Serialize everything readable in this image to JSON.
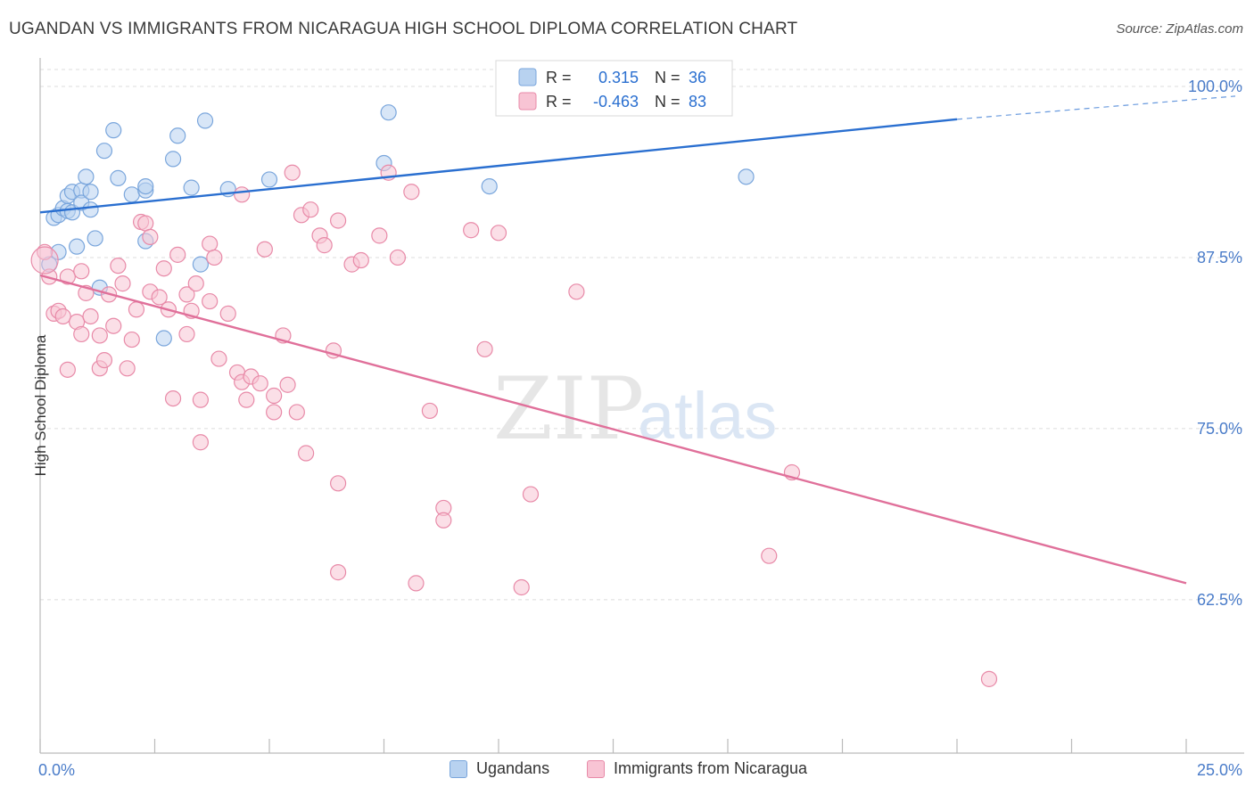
{
  "title": "UGANDAN VS IMMIGRANTS FROM NICARAGUA HIGH SCHOOL DIPLOMA CORRELATION CHART",
  "source": "Source: ZipAtlas.com",
  "watermark": {
    "zip": "ZIP",
    "atlas": "atlas"
  },
  "colors": {
    "blue_fill": "#b8d2f0",
    "blue_stroke": "#7aa6dc",
    "blue_line": "#2a6fd0",
    "pink_fill": "#f8c4d4",
    "pink_stroke": "#e88aa8",
    "pink_line": "#e0709a",
    "tick_label": "#4a7cc9",
    "grid": "#dcdcdc"
  },
  "stats_legend": [
    {
      "r_label": "R =",
      "r_value": "0.315",
      "n_label": "N =",
      "n_value": "36",
      "series": "Ugandans"
    },
    {
      "r_label": "R =",
      "r_value": "-0.463",
      "n_label": "N =",
      "n_value": "83",
      "series": "Immigrants from Nicaragua"
    }
  ],
  "chart_data": {
    "type": "scatter",
    "title": "UGANDAN VS IMMIGRANTS FROM NICARAGUA HIGH SCHOOL DIPLOMA CORRELATION CHART",
    "xlabel": "",
    "ylabel": "High School Diploma",
    "xlim": [
      0,
      25
    ],
    "ylim": [
      51.5,
      102
    ],
    "x_tick_labels": [
      "0.0%",
      "25.0%"
    ],
    "y_ticks": [
      62.5,
      75.0,
      87.5,
      100.0
    ],
    "y_tick_labels": [
      "62.5%",
      "75.0%",
      "87.5%",
      "100.0%"
    ],
    "grid": true,
    "legend": "bottom",
    "series": [
      {
        "name": "Ugandans",
        "color": "#b8d2f0",
        "trend": {
          "x": [
            0,
            20
          ],
          "y": [
            90.8,
            97.6
          ],
          "dashed_to": [
            25,
            98.9
          ]
        },
        "points": [
          [
            0.2,
            87.0
          ],
          [
            0.3,
            90.4
          ],
          [
            0.4,
            87.9
          ],
          [
            0.4,
            90.6
          ],
          [
            0.5,
            91.1
          ],
          [
            0.6,
            90.9
          ],
          [
            0.6,
            92.0
          ],
          [
            0.7,
            92.3
          ],
          [
            0.7,
            90.8
          ],
          [
            0.8,
            88.3
          ],
          [
            0.9,
            92.4
          ],
          [
            0.9,
            91.5
          ],
          [
            1.0,
            93.4
          ],
          [
            1.1,
            91.0
          ],
          [
            1.1,
            92.3
          ],
          [
            1.2,
            88.9
          ],
          [
            1.3,
            85.3
          ],
          [
            1.4,
            95.3
          ],
          [
            1.6,
            96.8
          ],
          [
            1.7,
            93.3
          ],
          [
            2.0,
            92.1
          ],
          [
            2.3,
            92.4
          ],
          [
            2.3,
            92.7
          ],
          [
            2.3,
            88.7
          ],
          [
            2.7,
            81.6
          ],
          [
            2.9,
            94.7
          ],
          [
            3.0,
            96.4
          ],
          [
            3.3,
            92.6
          ],
          [
            3.5,
            87.0
          ],
          [
            3.6,
            97.5
          ],
          [
            4.1,
            92.5
          ],
          [
            5.0,
            93.2
          ],
          [
            7.5,
            94.4
          ],
          [
            7.6,
            98.1
          ],
          [
            9.8,
            92.7
          ],
          [
            15.4,
            93.4
          ]
        ]
      },
      {
        "name": "Immigrants from Nicaragua",
        "color": "#f8c4d4",
        "trend": {
          "x": [
            0,
            25
          ],
          "y": [
            86.2,
            63.7
          ]
        },
        "points": [
          [
            0.1,
            87.9
          ],
          [
            0.2,
            86.1
          ],
          [
            0.3,
            83.4
          ],
          [
            0.4,
            83.6
          ],
          [
            0.5,
            83.2
          ],
          [
            0.6,
            86.1
          ],
          [
            0.6,
            79.3
          ],
          [
            0.8,
            82.8
          ],
          [
            0.9,
            81.9
          ],
          [
            0.9,
            86.5
          ],
          [
            1.0,
            84.9
          ],
          [
            1.1,
            83.2
          ],
          [
            1.3,
            81.8
          ],
          [
            1.3,
            79.4
          ],
          [
            1.4,
            80.0
          ],
          [
            1.5,
            84.8
          ],
          [
            1.6,
            82.5
          ],
          [
            1.7,
            86.9
          ],
          [
            1.8,
            85.6
          ],
          [
            1.9,
            79.4
          ],
          [
            2.0,
            81.5
          ],
          [
            2.1,
            83.7
          ],
          [
            2.2,
            90.1
          ],
          [
            2.3,
            90.0
          ],
          [
            2.4,
            85.0
          ],
          [
            2.4,
            89.0
          ],
          [
            2.6,
            84.6
          ],
          [
            2.7,
            86.7
          ],
          [
            2.8,
            83.7
          ],
          [
            2.9,
            77.2
          ],
          [
            3.0,
            87.7
          ],
          [
            3.2,
            84.8
          ],
          [
            3.2,
            81.9
          ],
          [
            3.3,
            83.6
          ],
          [
            3.4,
            85.6
          ],
          [
            3.5,
            77.1
          ],
          [
            3.5,
            74.0
          ],
          [
            3.7,
            84.3
          ],
          [
            3.7,
            88.5
          ],
          [
            3.8,
            87.5
          ],
          [
            3.9,
            80.1
          ],
          [
            4.1,
            83.4
          ],
          [
            4.3,
            79.1
          ],
          [
            4.4,
            78.4
          ],
          [
            4.4,
            92.1
          ],
          [
            4.5,
            77.1
          ],
          [
            4.6,
            78.8
          ],
          [
            4.8,
            78.3
          ],
          [
            4.9,
            88.1
          ],
          [
            5.1,
            77.4
          ],
          [
            5.1,
            76.2
          ],
          [
            5.3,
            81.8
          ],
          [
            5.4,
            78.2
          ],
          [
            5.5,
            93.7
          ],
          [
            5.6,
            76.2
          ],
          [
            5.7,
            90.6
          ],
          [
            5.8,
            73.2
          ],
          [
            5.9,
            91.0
          ],
          [
            6.1,
            89.1
          ],
          [
            6.2,
            88.4
          ],
          [
            6.4,
            80.7
          ],
          [
            6.5,
            71.0
          ],
          [
            6.5,
            64.5
          ],
          [
            6.5,
            90.2
          ],
          [
            6.8,
            87.0
          ],
          [
            7.0,
            87.3
          ],
          [
            7.4,
            89.1
          ],
          [
            7.6,
            93.7
          ],
          [
            7.8,
            87.5
          ],
          [
            8.1,
            92.3
          ],
          [
            8.2,
            63.7
          ],
          [
            8.5,
            76.3
          ],
          [
            8.8,
            69.2
          ],
          [
            8.8,
            68.3
          ],
          [
            9.4,
            89.5
          ],
          [
            9.7,
            80.8
          ],
          [
            10.0,
            89.3
          ],
          [
            10.5,
            63.4
          ],
          [
            10.7,
            70.2
          ],
          [
            11.7,
            85.0
          ],
          [
            15.9,
            65.7
          ],
          [
            16.4,
            71.8
          ],
          [
            20.7,
            56.7
          ]
        ]
      }
    ]
  },
  "bottom_legend": [
    {
      "label": "Ugandans"
    },
    {
      "label": "Immigrants from Nicaragua"
    }
  ]
}
